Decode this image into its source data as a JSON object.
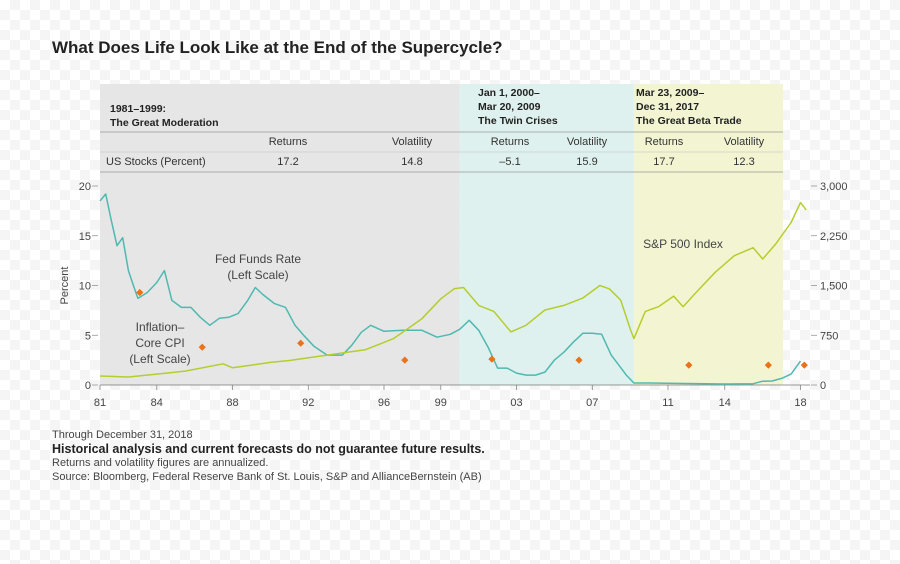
{
  "title": "What Does Life Look Like at the End of the Supercycle?",
  "periods": [
    {
      "label_lines": [
        "1981–1999:",
        "The Great Moderation"
      ],
      "returns_header": "Returns",
      "volatility_header": "Volatility",
      "returns": "17.2",
      "volatility": "14.8",
      "color": "#e6e6e6"
    },
    {
      "label_lines": [
        "Jan 1, 2000–",
        "Mar 20, 2009",
        "The Twin Crises"
      ],
      "returns_header": "Returns",
      "volatility_header": "Volatility",
      "returns": "–5.1",
      "volatility": "15.9",
      "color": "#dff1ee"
    },
    {
      "label_lines": [
        "Mar 23, 2009–",
        "Dec 31, 2017",
        "The Great Beta Trade"
      ],
      "returns_header": "Returns",
      "volatility_header": "Volatility",
      "returns": "17.7",
      "volatility": "12.3",
      "color": "#f3f5d2"
    }
  ],
  "row_label": "US Stocks (Percent)",
  "chart_data": {
    "type": "line",
    "ylabel": "Percent",
    "left_axis": {
      "ticks": [
        "0",
        "5",
        "10",
        "15",
        "20"
      ],
      "values": [
        0,
        5,
        10,
        15,
        20
      ],
      "ylim": [
        0,
        20
      ]
    },
    "right_axis": {
      "ticks": [
        "0",
        "750",
        "1,500",
        "2,250",
        "3,000"
      ],
      "values": [
        0,
        750,
        1500,
        2250,
        3000
      ],
      "ylim": [
        0,
        3000
      ]
    },
    "x_ticks": [
      "81",
      "84",
      "88",
      "92",
      "96",
      "99",
      "03",
      "07",
      "11",
      "14",
      "18"
    ],
    "x_tick_years": [
      1981,
      1984,
      1988,
      1992,
      1996,
      1999,
      2003,
      2007,
      2011,
      2014,
      2018
    ],
    "xlim": [
      1981,
      2018.5
    ],
    "shading": [
      {
        "from": 1981,
        "to": 2000.0,
        "color": "#e6e6e6"
      },
      {
        "from": 2000.0,
        "to": 2009.2,
        "color": "#dff1ee"
      },
      {
        "from": 2009.2,
        "to": 2018.0,
        "color": "#f3f5d2"
      }
    ],
    "series": [
      {
        "name": "Fed Funds Rate",
        "annotation_lines": [
          "Fed Funds Rate",
          "(Left Scale)"
        ],
        "axis": "left",
        "color": "#4fb9b0",
        "x": [
          1981.0,
          1981.3,
          1981.6,
          1981.9,
          1982.2,
          1982.5,
          1982.8,
          1983.0,
          1983.5,
          1984.0,
          1984.4,
          1984.8,
          1985.3,
          1985.8,
          1986.3,
          1986.8,
          1987.3,
          1987.8,
          1988.3,
          1988.8,
          1989.2,
          1989.6,
          1990.2,
          1990.8,
          1991.3,
          1991.8,
          1992.3,
          1993.0,
          1993.8,
          1994.3,
          1994.8,
          1995.3,
          1996.0,
          1997.0,
          1998.0,
          1998.8,
          1999.5,
          2000.0,
          2000.5,
          2001.0,
          2001.5,
          2002.0,
          2002.5,
          2003.0,
          2003.5,
          2004.0,
          2004.5,
          2005.0,
          2005.5,
          2006.0,
          2006.5,
          2007.0,
          2007.5,
          2008.0,
          2008.4,
          2008.8,
          2009.2,
          2010.0,
          2012.0,
          2014.0,
          2015.5,
          2016.0,
          2016.5,
          2017.0,
          2017.5,
          2018.0
        ],
        "y": [
          18.5,
          19.2,
          16.5,
          14.0,
          14.8,
          11.5,
          9.8,
          8.7,
          9.3,
          10.3,
          11.5,
          8.5,
          7.8,
          7.8,
          6.8,
          6.0,
          6.7,
          6.8,
          7.2,
          8.5,
          9.8,
          9.1,
          8.2,
          7.8,
          6.0,
          4.9,
          3.9,
          3.0,
          3.0,
          4.0,
          5.3,
          6.0,
          5.4,
          5.5,
          5.5,
          4.8,
          5.1,
          5.6,
          6.5,
          5.5,
          3.8,
          1.7,
          1.7,
          1.2,
          1.0,
          1.0,
          1.3,
          2.5,
          3.3,
          4.3,
          5.2,
          5.2,
          5.1,
          3.0,
          2.0,
          1.0,
          0.2,
          0.2,
          0.15,
          0.1,
          0.13,
          0.38,
          0.4,
          0.66,
          1.1,
          2.4
        ]
      },
      {
        "name": "Inflation–Core CPI",
        "annotation_lines": [
          "Inflation–",
          "Core CPI",
          "(Left Scale)"
        ],
        "axis": "left",
        "color": "#e8731a",
        "x": [
          1983.1,
          1986.4,
          1991.6,
          1997.1,
          2001.7,
          2006.3,
          2012.1,
          2016.3,
          2018.2
        ],
        "y": [
          9.3,
          3.8,
          4.2,
          2.5,
          2.6,
          2.5,
          2.0,
          2.0,
          2.0
        ]
      },
      {
        "name": "S&P 500 Index",
        "annotation_lines": [
          "S&P 500 Index"
        ],
        "axis": "right",
        "color": "#b5cd2d",
        "x": [
          1981.0,
          1982.5,
          1984.0,
          1985.5,
          1987.5,
          1988.0,
          1990.0,
          1991.0,
          1993.0,
          1995.0,
          1996.5,
          1998.0,
          1999.0,
          1999.7,
          2000.2,
          2001.0,
          2001.8,
          2002.7,
          2003.5,
          2004.5,
          2005.5,
          2006.5,
          2007.4,
          2007.9,
          2008.5,
          2009.0,
          2009.2,
          2009.8,
          2010.5,
          2011.3,
          2011.8,
          2012.5,
          2013.5,
          2014.5,
          2015.5,
          2016.0,
          2016.7,
          2017.5,
          2018.0,
          2018.3
        ],
        "y": [
          135,
          120,
          165,
          210,
          320,
          260,
          340,
          370,
          450,
          530,
          700,
          1000,
          1300,
          1450,
          1470,
          1200,
          1110,
          800,
          900,
          1130,
          1200,
          1310,
          1500,
          1450,
          1280,
          850,
          700,
          1110,
          1180,
          1340,
          1180,
          1400,
          1700,
          1950,
          2070,
          1900,
          2130,
          2450,
          2750,
          2640
        ]
      }
    ]
  },
  "footnotes": {
    "through": "Through December 31, 2018",
    "disclaimer": "Historical analysis and current forecasts do not guarantee future results.",
    "annualized": "Returns and volatility figures are annualized.",
    "source": "Source: Bloomberg, Federal Reserve Bank of St. Louis, S&P and AllianceBernstein (AB)"
  }
}
